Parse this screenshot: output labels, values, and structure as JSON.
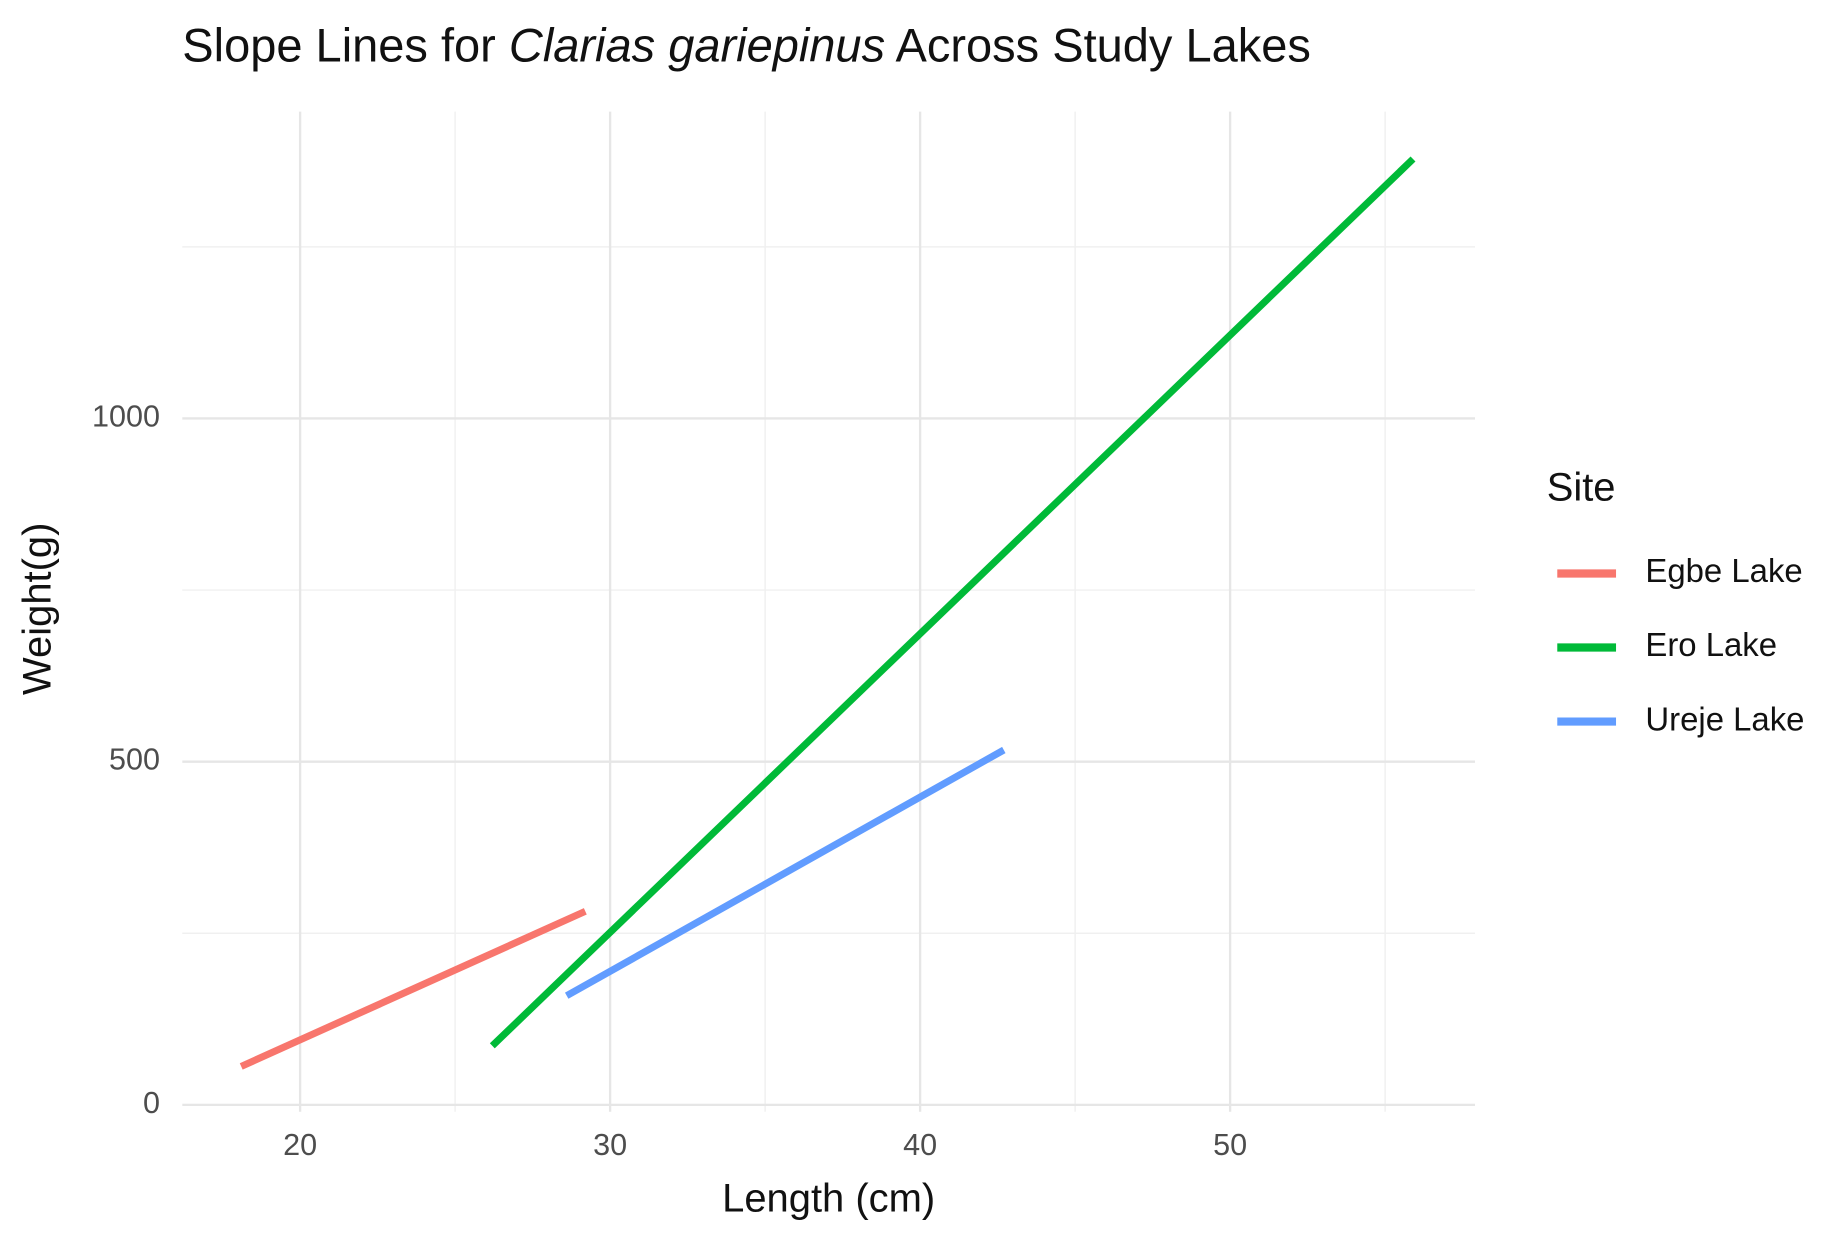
{
  "chart_data": {
    "type": "line",
    "title": [
      "Slope Lines for ",
      "Clarias gariepinus",
      " Across Study Lakes"
    ],
    "x_label": "Length (cm)",
    "y_label": "Weight(g)",
    "legend_title": "Site",
    "legend": "right",
    "series": [
      {
        "name": "Egbe Lake",
        "color": "#f8766d",
        "x": [
          18.1,
          29.2
        ],
        "values": [
          56,
          282
        ]
      },
      {
        "name": "Ero Lake",
        "color": "#00ba38",
        "x": [
          26.2,
          55.9
        ],
        "values": [
          86,
          1378
        ]
      },
      {
        "name": "Ureje Lake",
        "color": "#619cff",
        "x": [
          28.6,
          42.7
        ],
        "values": [
          159,
          517
        ]
      }
    ],
    "xlim": [
      16.2,
      57.9
    ],
    "xticks": [
      20,
      30,
      40,
      50
    ],
    "x_minor_grid": [
      25,
      35,
      45,
      55
    ],
    "ylim": [
      -10,
      1447
    ],
    "yticks": [
      0,
      500,
      1000
    ],
    "y_minor_grid": [
      250,
      750,
      1250
    ],
    "grid": true
  }
}
